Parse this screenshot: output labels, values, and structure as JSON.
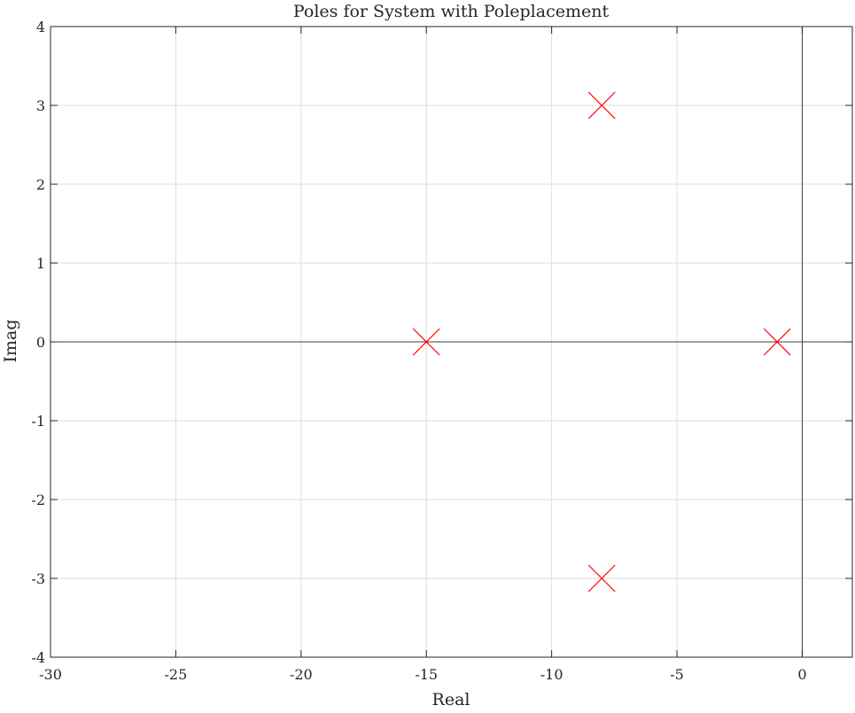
{
  "chart_data": {
    "type": "scatter",
    "title": "Poles for System with Poleplacement",
    "xlabel": "Real",
    "ylabel": "Imag",
    "xlim": [
      -30,
      2
    ],
    "ylim": [
      -4,
      4
    ],
    "x_ticks": [
      -30,
      -25,
      -20,
      -15,
      -10,
      -5,
      0
    ],
    "y_ticks": [
      -4,
      -3,
      -2,
      -1,
      0,
      1,
      2,
      3,
      4
    ],
    "grid": true,
    "marker": "x",
    "marker_color": "#ff0000",
    "zero_lines": true,
    "points": [
      {
        "x": -15,
        "y": 0
      },
      {
        "x": -8,
        "y": 3
      },
      {
        "x": -8,
        "y": -3
      },
      {
        "x": -1,
        "y": 0
      }
    ]
  }
}
